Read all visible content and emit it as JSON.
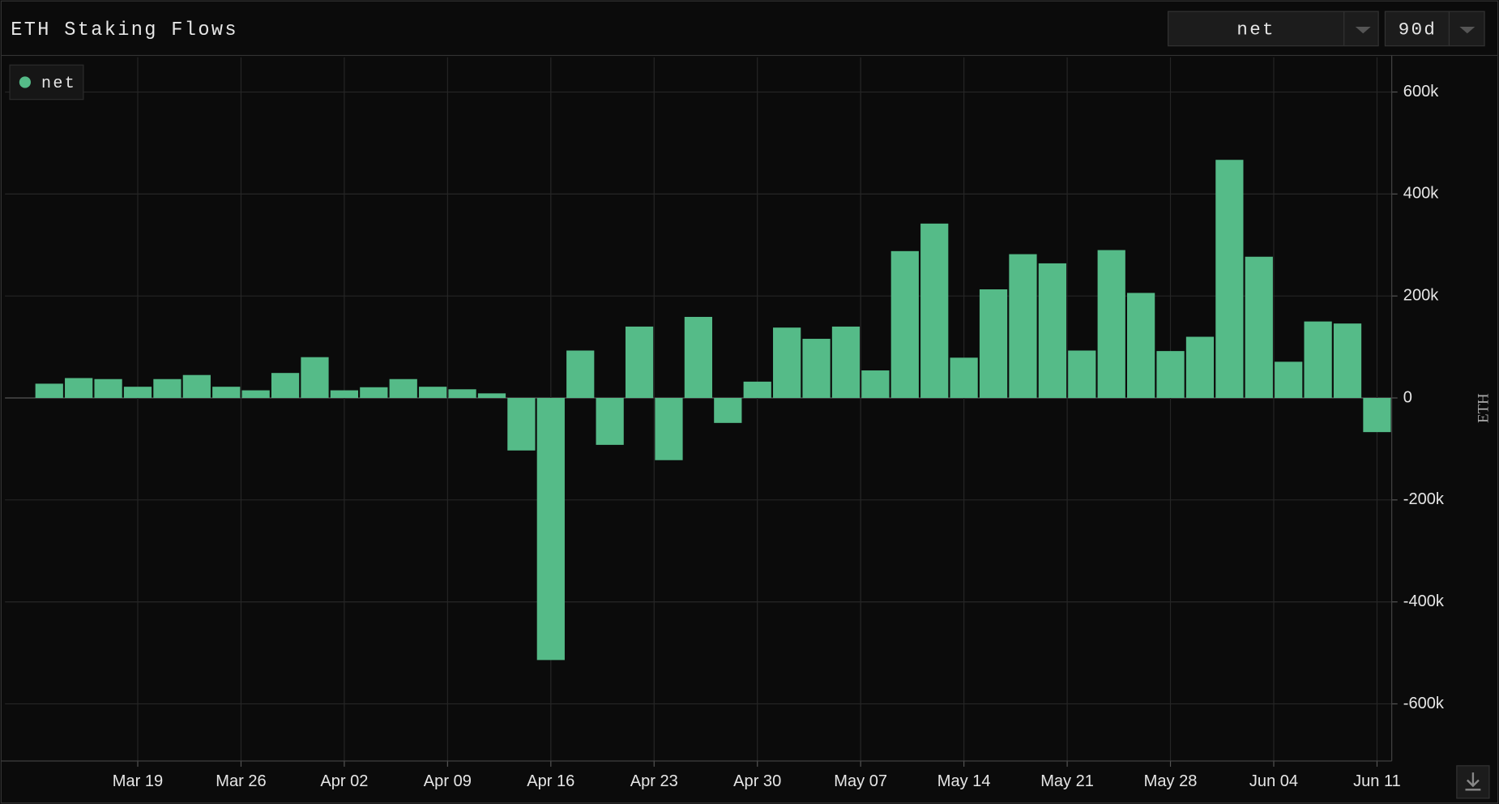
{
  "title": "ETH Staking Flows",
  "controls": {
    "metric": "net",
    "range": "90d"
  },
  "chart_data": {
    "type": "bar",
    "x": [
      "Mar 13",
      "Mar 15",
      "Mar 17",
      "Mar 19",
      "Mar 21",
      "Mar 23",
      "Mar 25",
      "Mar 27",
      "Mar 29",
      "Mar 31",
      "Apr 02",
      "Apr 04",
      "Apr 06",
      "Apr 08",
      "Apr 10",
      "Apr 12",
      "Apr 14",
      "Apr 16",
      "Apr 18",
      "Apr 20",
      "Apr 22",
      "Apr 24",
      "Apr 26",
      "Apr 28",
      "Apr 30",
      "May 02",
      "May 04",
      "May 06",
      "May 08",
      "May 10",
      "May 12",
      "May 14",
      "May 16",
      "May 18",
      "May 20",
      "May 22",
      "May 24",
      "May 26",
      "May 28",
      "May 30",
      "Jun 01",
      "Jun 03",
      "Jun 05",
      "Jun 07",
      "Jun 09",
      "Jun 11"
    ],
    "series": [
      {
        "name": "net",
        "color": "#55bb88",
        "values": [
          28000,
          39000,
          37000,
          22000,
          37000,
          45000,
          22000,
          15000,
          49000,
          80000,
          15000,
          21000,
          37000,
          22000,
          17000,
          9000,
          -103000,
          -514000,
          93000,
          -92000,
          140000,
          -122000,
          159000,
          -49000,
          32000,
          138000,
          116000,
          140000,
          54000,
          288000,
          342000,
          79000,
          213000,
          282000,
          264000,
          93000,
          290000,
          206000,
          92000,
          120000,
          467000,
          277000,
          71000,
          150000,
          146000,
          -67000
        ]
      }
    ],
    "xlim": [
      "Mar 10",
      "Jun 12"
    ],
    "xticks": [
      "Mar 19",
      "Mar 26",
      "Apr 02",
      "Apr 09",
      "Apr 16",
      "Apr 23",
      "Apr 30",
      "May 07",
      "May 14",
      "May 21",
      "May 28",
      "Jun 04",
      "Jun 11"
    ],
    "ylabel": "ETH",
    "ylim": [
      -712000,
      668000
    ],
    "yticks": [
      {
        "value": -600000,
        "label": "-600k"
      },
      {
        "value": -400000,
        "label": "-400k"
      },
      {
        "value": -200000,
        "label": "-200k"
      },
      0,
      {
        "value": 200000,
        "label": "200k"
      },
      {
        "value": 400000,
        "label": "400k"
      },
      {
        "value": 600000,
        "label": "600k"
      }
    ],
    "grid": true
  }
}
